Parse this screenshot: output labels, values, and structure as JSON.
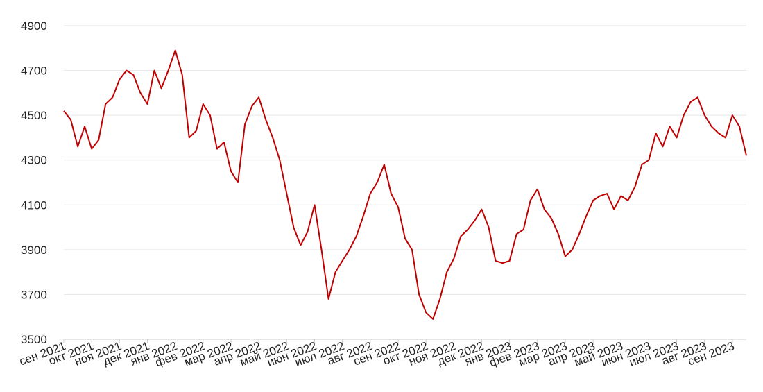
{
  "chart_data": {
    "type": "line",
    "categories": [
      "сен 2021",
      null,
      null,
      null,
      "окт 2021",
      null,
      null,
      null,
      "ноя 2021",
      null,
      null,
      null,
      "дек 2021",
      null,
      null,
      null,
      "янв 2022",
      null,
      null,
      null,
      "фев 2022",
      null,
      null,
      null,
      "мар 2022",
      null,
      null,
      null,
      "апр 2022",
      null,
      null,
      null,
      "май 2022",
      null,
      null,
      null,
      "июн 2022",
      null,
      null,
      null,
      "июл 2022",
      null,
      null,
      null,
      "авг 2022",
      null,
      null,
      null,
      "сен 2022",
      null,
      null,
      null,
      "окт 2022",
      null,
      null,
      null,
      "ноя 2022",
      null,
      null,
      null,
      "дек 2022",
      null,
      null,
      null,
      "янв 2023",
      null,
      null,
      null,
      "фев 2023",
      null,
      null,
      null,
      "мар 2023",
      null,
      null,
      null,
      "апр 2023",
      null,
      null,
      null,
      "май 2023",
      null,
      null,
      null,
      "июн 2023",
      null,
      null,
      null,
      "июл 2023",
      null,
      null,
      null,
      "авг 2023",
      null,
      null,
      null,
      "сен 2023",
      null,
      null
    ],
    "values": [
      4520,
      4480,
      4360,
      4450,
      4350,
      4390,
      4550,
      4580,
      4660,
      4700,
      4680,
      4600,
      4550,
      4700,
      4620,
      4700,
      4790,
      4680,
      4400,
      4430,
      4550,
      4500,
      4350,
      4380,
      4250,
      4200,
      4460,
      4540,
      4580,
      4480,
      4400,
      4300,
      4150,
      4000,
      3920,
      3980,
      4100,
      3900,
      3680,
      3800,
      3850,
      3900,
      3960,
      4050,
      4150,
      4200,
      4280,
      4150,
      4090,
      3950,
      3900,
      3700,
      3620,
      3590,
      3680,
      3800,
      3860,
      3960,
      3990,
      4030,
      4080,
      4000,
      3850,
      3840,
      3850,
      3970,
      3990,
      4120,
      4170,
      4080,
      4040,
      3970,
      3870,
      3900,
      3970,
      4050,
      4120,
      4140,
      4150,
      4080,
      4140,
      4120,
      4180,
      4280,
      4300,
      4420,
      4360,
      4450,
      4400,
      4500,
      4560,
      4580,
      4500,
      4450,
      4420,
      4400,
      4500,
      4450,
      4320
    ],
    "color": "#c00000",
    "ylim": [
      3500,
      4900
    ],
    "yticks": [
      3500,
      3700,
      3900,
      4100,
      4300,
      4500,
      4700,
      4900
    ],
    "grid": true
  }
}
